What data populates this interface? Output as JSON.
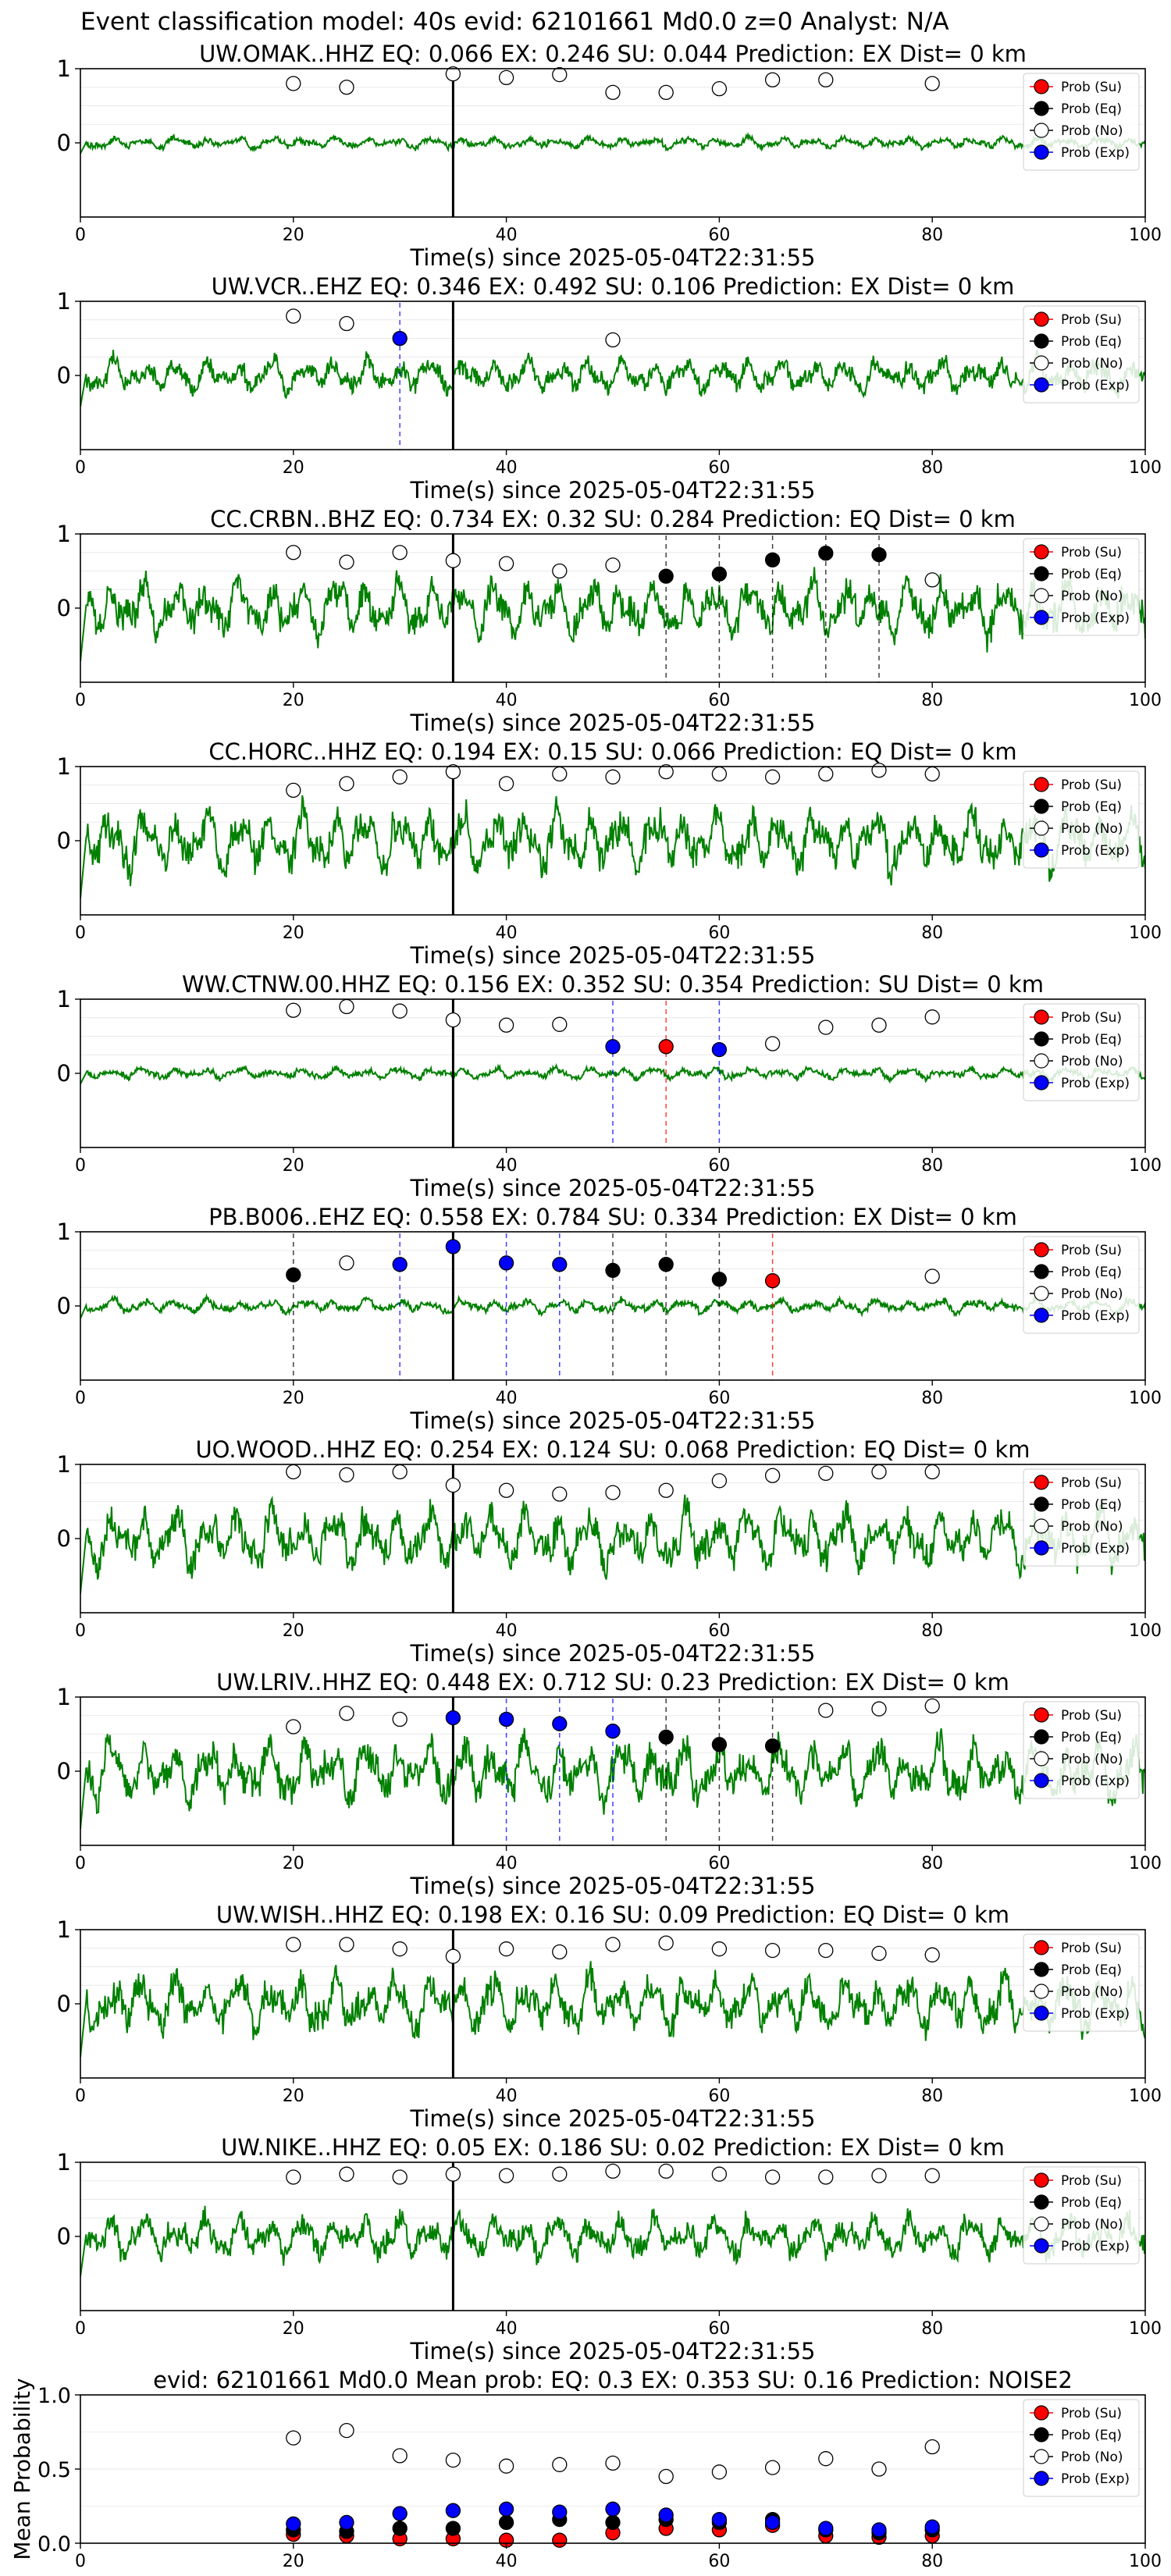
{
  "suptitle": "Event classification model: 40s evid: 62101661 Md0.0 z=0 Analyst: N/A",
  "x_axis_label": "Time(s) since 2025-05-04T22:31:55",
  "legend_entries": [
    {
      "key": "su",
      "label": "Prob (Su)",
      "color": "#ff0000",
      "fill": true
    },
    {
      "key": "eq",
      "label": "Prob (Eq)",
      "color": "#000000",
      "fill": true
    },
    {
      "key": "no",
      "label": "Prob (No)",
      "color": "#ffffff",
      "fill": false
    },
    {
      "key": "exp",
      "label": "Prob (Exp)",
      "color": "#0000ff",
      "fill": true
    }
  ],
  "colors": {
    "waveform": "#008000",
    "su": "#ff0000",
    "eq": "#000000",
    "exp": "#0000ff",
    "origin_line": "#000000"
  },
  "chart_data": [
    {
      "type": "line",
      "title": "UW.OMAK..HHZ   EQ: 0.066  EX: 0.246  SU: 0.044   Prediction: EX    Dist= 0 km",
      "xlim": [
        0,
        100
      ],
      "ylim": [
        -1,
        1
      ],
      "xticks": [
        0,
        20,
        40,
        60,
        80,
        100
      ],
      "yticks": [
        0,
        1
      ],
      "origin_time": 35,
      "waveform_amplitude": 0.12,
      "seed": 11,
      "prob_points": [
        {
          "x": 20,
          "cls": "no",
          "y": 0.8
        },
        {
          "x": 25,
          "cls": "no",
          "y": 0.75
        },
        {
          "x": 35,
          "cls": "no",
          "y": 0.93
        },
        {
          "x": 40,
          "cls": "no",
          "y": 0.88
        },
        {
          "x": 45,
          "cls": "no",
          "y": 0.92
        },
        {
          "x": 50,
          "cls": "no",
          "y": 0.68
        },
        {
          "x": 55,
          "cls": "no",
          "y": 0.68
        },
        {
          "x": 60,
          "cls": "no",
          "y": 0.73
        },
        {
          "x": 65,
          "cls": "no",
          "y": 0.85
        },
        {
          "x": 70,
          "cls": "no",
          "y": 0.85
        },
        {
          "x": 80,
          "cls": "no",
          "y": 0.8
        }
      ],
      "picks": []
    },
    {
      "type": "line",
      "title": "UW.VCR..EHZ   EQ: 0.346  EX: 0.492  SU: 0.106   Prediction: EX    Dist= 0 km",
      "xlim": [
        0,
        100
      ],
      "ylim": [
        -1,
        1
      ],
      "xticks": [
        0,
        20,
        40,
        60,
        80,
        100
      ],
      "yticks": [
        0,
        1
      ],
      "origin_time": 35,
      "waveform_amplitude": 0.35,
      "seed": 23,
      "prob_points": [
        {
          "x": 20,
          "cls": "no",
          "y": 0.8
        },
        {
          "x": 25,
          "cls": "no",
          "y": 0.7
        },
        {
          "x": 30,
          "cls": "exp",
          "y": 0.5
        },
        {
          "x": 50,
          "cls": "no",
          "y": 0.48
        }
      ],
      "picks": [
        {
          "x": 30,
          "cls": "exp"
        }
      ]
    },
    {
      "type": "line",
      "title": "CC.CRBN..BHZ   EQ: 0.734  EX: 0.32  SU: 0.284   Prediction: EQ    Dist= 0 km",
      "xlim": [
        0,
        100
      ],
      "ylim": [
        -1,
        1
      ],
      "xticks": [
        0,
        20,
        40,
        60,
        80,
        100
      ],
      "yticks": [
        0,
        1
      ],
      "origin_time": 35,
      "waveform_amplitude": 0.6,
      "seed": 37,
      "prob_points": [
        {
          "x": 20,
          "cls": "no",
          "y": 0.75
        },
        {
          "x": 25,
          "cls": "no",
          "y": 0.62
        },
        {
          "x": 30,
          "cls": "no",
          "y": 0.75
        },
        {
          "x": 35,
          "cls": "no",
          "y": 0.64
        },
        {
          "x": 40,
          "cls": "no",
          "y": 0.6
        },
        {
          "x": 45,
          "cls": "no",
          "y": 0.5
        },
        {
          "x": 50,
          "cls": "no",
          "y": 0.58
        },
        {
          "x": 55,
          "cls": "eq",
          "y": 0.43
        },
        {
          "x": 60,
          "cls": "eq",
          "y": 0.46
        },
        {
          "x": 65,
          "cls": "eq",
          "y": 0.65
        },
        {
          "x": 70,
          "cls": "eq",
          "y": 0.74
        },
        {
          "x": 75,
          "cls": "eq",
          "y": 0.72
        },
        {
          "x": 80,
          "cls": "no",
          "y": 0.38
        }
      ],
      "picks": [
        {
          "x": 55,
          "cls": "eq"
        },
        {
          "x": 60,
          "cls": "eq"
        },
        {
          "x": 65,
          "cls": "eq"
        },
        {
          "x": 70,
          "cls": "eq"
        },
        {
          "x": 75,
          "cls": "eq"
        }
      ]
    },
    {
      "type": "line",
      "title": "CC.HORC..HHZ   EQ: 0.194  EX: 0.15  SU: 0.066   Prediction: EQ    Dist= 0 km",
      "xlim": [
        0,
        100
      ],
      "ylim": [
        -1,
        1
      ],
      "xticks": [
        0,
        20,
        40,
        60,
        80,
        100
      ],
      "yticks": [
        0,
        1
      ],
      "origin_time": 35,
      "waveform_amplitude": 0.65,
      "seed": 41,
      "prob_points": [
        {
          "x": 20,
          "cls": "no",
          "y": 0.68
        },
        {
          "x": 25,
          "cls": "no",
          "y": 0.77
        },
        {
          "x": 30,
          "cls": "no",
          "y": 0.86
        },
        {
          "x": 35,
          "cls": "no",
          "y": 0.93
        },
        {
          "x": 40,
          "cls": "no",
          "y": 0.77
        },
        {
          "x": 45,
          "cls": "no",
          "y": 0.9
        },
        {
          "x": 50,
          "cls": "no",
          "y": 0.86
        },
        {
          "x": 55,
          "cls": "no",
          "y": 0.93
        },
        {
          "x": 60,
          "cls": "no",
          "y": 0.9
        },
        {
          "x": 65,
          "cls": "no",
          "y": 0.86
        },
        {
          "x": 70,
          "cls": "no",
          "y": 0.9
        },
        {
          "x": 75,
          "cls": "no",
          "y": 0.95
        },
        {
          "x": 80,
          "cls": "no",
          "y": 0.9
        }
      ],
      "picks": []
    },
    {
      "type": "line",
      "title": "WW.CTNW.00.HHZ   EQ: 0.156  EX: 0.352  SU: 0.354   Prediction: SU    Dist= 0 km",
      "xlim": [
        0,
        100
      ],
      "ylim": [
        -1,
        1
      ],
      "xticks": [
        0,
        20,
        40,
        60,
        80,
        100
      ],
      "yticks": [
        0,
        1
      ],
      "origin_time": 35,
      "waveform_amplitude": 0.12,
      "seed": 53,
      "prob_points": [
        {
          "x": 20,
          "cls": "no",
          "y": 0.85
        },
        {
          "x": 25,
          "cls": "no",
          "y": 0.9
        },
        {
          "x": 30,
          "cls": "no",
          "y": 0.84
        },
        {
          "x": 35,
          "cls": "no",
          "y": 0.72
        },
        {
          "x": 40,
          "cls": "no",
          "y": 0.65
        },
        {
          "x": 45,
          "cls": "no",
          "y": 0.66
        },
        {
          "x": 50,
          "cls": "exp",
          "y": 0.36
        },
        {
          "x": 55,
          "cls": "su",
          "y": 0.36
        },
        {
          "x": 60,
          "cls": "exp",
          "y": 0.32
        },
        {
          "x": 65,
          "cls": "no",
          "y": 0.4
        },
        {
          "x": 70,
          "cls": "no",
          "y": 0.62
        },
        {
          "x": 75,
          "cls": "no",
          "y": 0.65
        },
        {
          "x": 80,
          "cls": "no",
          "y": 0.76
        }
      ],
      "picks": [
        {
          "x": 50,
          "cls": "exp"
        },
        {
          "x": 55,
          "cls": "su"
        },
        {
          "x": 60,
          "cls": "exp"
        }
      ]
    },
    {
      "type": "line",
      "title": "PB.B006..EHZ   EQ: 0.558  EX: 0.784  SU: 0.334   Prediction: EX    Dist= 0 km",
      "xlim": [
        0,
        100
      ],
      "ylim": [
        -1,
        1
      ],
      "xticks": [
        0,
        20,
        40,
        60,
        80,
        100
      ],
      "yticks": [
        0,
        1
      ],
      "origin_time": 35,
      "waveform_amplitude": 0.14,
      "seed": 67,
      "prob_points": [
        {
          "x": 20,
          "cls": "eq",
          "y": 0.42
        },
        {
          "x": 25,
          "cls": "no",
          "y": 0.58
        },
        {
          "x": 30,
          "cls": "exp",
          "y": 0.56
        },
        {
          "x": 35,
          "cls": "exp",
          "y": 0.8
        },
        {
          "x": 40,
          "cls": "exp",
          "y": 0.58
        },
        {
          "x": 45,
          "cls": "exp",
          "y": 0.56
        },
        {
          "x": 50,
          "cls": "eq",
          "y": 0.48
        },
        {
          "x": 55,
          "cls": "eq",
          "y": 0.56
        },
        {
          "x": 60,
          "cls": "eq",
          "y": 0.36
        },
        {
          "x": 65,
          "cls": "su",
          "y": 0.34
        },
        {
          "x": 80,
          "cls": "no",
          "y": 0.4
        }
      ],
      "picks": [
        {
          "x": 20,
          "cls": "eq"
        },
        {
          "x": 30,
          "cls": "exp"
        },
        {
          "x": 40,
          "cls": "exp"
        },
        {
          "x": 45,
          "cls": "exp"
        },
        {
          "x": 50,
          "cls": "eq"
        },
        {
          "x": 55,
          "cls": "eq"
        },
        {
          "x": 60,
          "cls": "eq"
        },
        {
          "x": 65,
          "cls": "su"
        }
      ]
    },
    {
      "type": "line",
      "title": "UO.WOOD..HHZ   EQ: 0.254  EX: 0.124  SU: 0.068   Prediction: EQ    Dist= 0 km",
      "xlim": [
        0,
        100
      ],
      "ylim": [
        -1,
        1
      ],
      "xticks": [
        0,
        20,
        40,
        60,
        80,
        100
      ],
      "yticks": [
        0,
        1
      ],
      "origin_time": 35,
      "waveform_amplitude": 0.62,
      "seed": 71,
      "prob_points": [
        {
          "x": 20,
          "cls": "no",
          "y": 0.9
        },
        {
          "x": 25,
          "cls": "no",
          "y": 0.86
        },
        {
          "x": 30,
          "cls": "no",
          "y": 0.9
        },
        {
          "x": 35,
          "cls": "no",
          "y": 0.72
        },
        {
          "x": 40,
          "cls": "no",
          "y": 0.65
        },
        {
          "x": 45,
          "cls": "no",
          "y": 0.6
        },
        {
          "x": 50,
          "cls": "no",
          "y": 0.62
        },
        {
          "x": 55,
          "cls": "no",
          "y": 0.65
        },
        {
          "x": 60,
          "cls": "no",
          "y": 0.78
        },
        {
          "x": 65,
          "cls": "no",
          "y": 0.85
        },
        {
          "x": 70,
          "cls": "no",
          "y": 0.88
        },
        {
          "x": 75,
          "cls": "no",
          "y": 0.9
        },
        {
          "x": 80,
          "cls": "no",
          "y": 0.9
        }
      ],
      "picks": []
    },
    {
      "type": "line",
      "title": "UW.LRIV..HHZ   EQ: 0.448  EX: 0.712  SU: 0.23   Prediction: EX    Dist= 0 km",
      "xlim": [
        0,
        100
      ],
      "ylim": [
        -1,
        1
      ],
      "xticks": [
        0,
        20,
        40,
        60,
        80,
        100
      ],
      "yticks": [
        0,
        1
      ],
      "origin_time": 35,
      "waveform_amplitude": 0.65,
      "seed": 83,
      "prob_points": [
        {
          "x": 20,
          "cls": "no",
          "y": 0.6
        },
        {
          "x": 25,
          "cls": "no",
          "y": 0.78
        },
        {
          "x": 30,
          "cls": "no",
          "y": 0.7
        },
        {
          "x": 35,
          "cls": "exp",
          "y": 0.72
        },
        {
          "x": 40,
          "cls": "exp",
          "y": 0.7
        },
        {
          "x": 45,
          "cls": "exp",
          "y": 0.64
        },
        {
          "x": 50,
          "cls": "exp",
          "y": 0.54
        },
        {
          "x": 55,
          "cls": "eq",
          "y": 0.46
        },
        {
          "x": 60,
          "cls": "eq",
          "y": 0.36
        },
        {
          "x": 65,
          "cls": "eq",
          "y": 0.34
        },
        {
          "x": 70,
          "cls": "no",
          "y": 0.82
        },
        {
          "x": 75,
          "cls": "no",
          "y": 0.84
        },
        {
          "x": 80,
          "cls": "no",
          "y": 0.88
        }
      ],
      "picks": [
        {
          "x": 40,
          "cls": "exp"
        },
        {
          "x": 45,
          "cls": "exp"
        },
        {
          "x": 50,
          "cls": "exp"
        },
        {
          "x": 55,
          "cls": "eq"
        },
        {
          "x": 60,
          "cls": "eq"
        },
        {
          "x": 65,
          "cls": "eq"
        }
      ]
    },
    {
      "type": "line",
      "title": "UW.WISH..HHZ   EQ: 0.198  EX: 0.16  SU: 0.09   Prediction: EQ    Dist= 0 km",
      "xlim": [
        0,
        100
      ],
      "ylim": [
        -1,
        1
      ],
      "xticks": [
        0,
        20,
        40,
        60,
        80,
        100
      ],
      "yticks": [
        0,
        1
      ],
      "origin_time": 35,
      "waveform_amplitude": 0.6,
      "seed": 97,
      "prob_points": [
        {
          "x": 20,
          "cls": "no",
          "y": 0.8
        },
        {
          "x": 25,
          "cls": "no",
          "y": 0.8
        },
        {
          "x": 30,
          "cls": "no",
          "y": 0.74
        },
        {
          "x": 35,
          "cls": "no",
          "y": 0.64
        },
        {
          "x": 40,
          "cls": "no",
          "y": 0.74
        },
        {
          "x": 45,
          "cls": "no",
          "y": 0.7
        },
        {
          "x": 50,
          "cls": "no",
          "y": 0.8
        },
        {
          "x": 55,
          "cls": "no",
          "y": 0.82
        },
        {
          "x": 60,
          "cls": "no",
          "y": 0.74
        },
        {
          "x": 65,
          "cls": "no",
          "y": 0.72
        },
        {
          "x": 70,
          "cls": "no",
          "y": 0.72
        },
        {
          "x": 75,
          "cls": "no",
          "y": 0.68
        },
        {
          "x": 80,
          "cls": "no",
          "y": 0.66
        }
      ],
      "picks": []
    },
    {
      "type": "line",
      "title": "UW.NIKE..HHZ   EQ: 0.05  EX: 0.186  SU: 0.02   Prediction: EX    Dist= 0 km",
      "xlim": [
        0,
        100
      ],
      "ylim": [
        -1,
        1
      ],
      "xticks": [
        0,
        20,
        40,
        60,
        80,
        100
      ],
      "yticks": [
        0,
        1
      ],
      "origin_time": 35,
      "waveform_amplitude": 0.45,
      "seed": 101,
      "prob_points": [
        {
          "x": 20,
          "cls": "no",
          "y": 0.8
        },
        {
          "x": 25,
          "cls": "no",
          "y": 0.84
        },
        {
          "x": 30,
          "cls": "no",
          "y": 0.8
        },
        {
          "x": 35,
          "cls": "no",
          "y": 0.84
        },
        {
          "x": 40,
          "cls": "no",
          "y": 0.82
        },
        {
          "x": 45,
          "cls": "no",
          "y": 0.84
        },
        {
          "x": 50,
          "cls": "no",
          "y": 0.88
        },
        {
          "x": 55,
          "cls": "no",
          "y": 0.88
        },
        {
          "x": 60,
          "cls": "no",
          "y": 0.84
        },
        {
          "x": 65,
          "cls": "no",
          "y": 0.8
        },
        {
          "x": 70,
          "cls": "no",
          "y": 0.8
        },
        {
          "x": 75,
          "cls": "no",
          "y": 0.82
        },
        {
          "x": 80,
          "cls": "no",
          "y": 0.82
        }
      ],
      "picks": []
    },
    {
      "type": "scatter",
      "title": "evid: 62101661   Md0.0   Mean prob:   EQ: 0.3  EX: 0.353  SU: 0.16   Prediction: NOISE2",
      "ylabel": "Mean Probability",
      "xlim": [
        0,
        100
      ],
      "ylim": [
        0,
        1
      ],
      "xticks": [
        0,
        20,
        40,
        60,
        80,
        100
      ],
      "yticks": [
        0.0,
        0.5,
        1.0
      ],
      "ytick_labels": [
        "0.0",
        "0.5",
        "1.0"
      ],
      "x": [
        20,
        25,
        30,
        35,
        40,
        45,
        50,
        55,
        60,
        65,
        70,
        75,
        80
      ],
      "series": [
        {
          "name": "Prob (Su)",
          "cls": "su",
          "values": [
            0.06,
            0.05,
            0.03,
            0.03,
            0.02,
            0.02,
            0.07,
            0.1,
            0.09,
            0.12,
            0.05,
            0.04,
            0.05
          ]
        },
        {
          "name": "Prob (Eq)",
          "cls": "eq",
          "values": [
            0.09,
            0.08,
            0.1,
            0.1,
            0.14,
            0.16,
            0.14,
            0.16,
            0.14,
            0.16,
            0.09,
            0.07,
            0.09
          ]
        },
        {
          "name": "Prob (No)",
          "cls": "no",
          "values": [
            0.71,
            0.76,
            0.59,
            0.56,
            0.52,
            0.53,
            0.54,
            0.45,
            0.48,
            0.51,
            0.57,
            0.5,
            0.65
          ]
        },
        {
          "name": "Prob (Exp)",
          "cls": "exp",
          "values": [
            0.13,
            0.14,
            0.2,
            0.22,
            0.23,
            0.21,
            0.23,
            0.19,
            0.16,
            0.14,
            0.1,
            0.09,
            0.11
          ]
        }
      ]
    }
  ]
}
